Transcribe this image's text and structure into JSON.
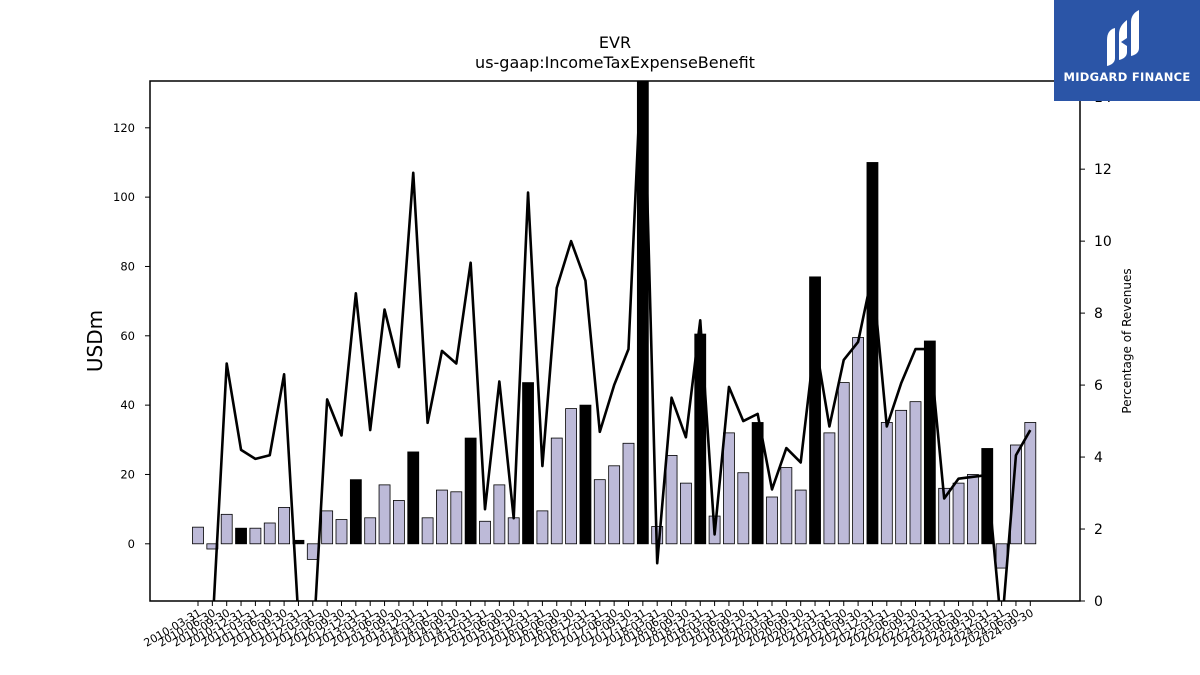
{
  "logo": {
    "text": "MIDGARD FINANCE",
    "color": "#2b55a7"
  },
  "chart_data": {
    "type": "bar",
    "title": "EVR",
    "subtitle": "us-gaap:IncomeTaxExpenseBenefit",
    "ylabel": "USDm",
    "y2label": "Percentage of Revenues",
    "ylim": [
      -16.5,
      133.5
    ],
    "y2lim": [
      0,
      14.45
    ],
    "yticks": [
      0,
      20,
      40,
      60,
      80,
      100,
      120
    ],
    "y2ticks": [
      0,
      2,
      4,
      6,
      8,
      10,
      12,
      14
    ],
    "grid": false,
    "bar_colors": {
      "quarter": "#bdbad8",
      "annual": "#000000"
    },
    "line_color": "#000000",
    "x_tick_labels": [
      "2010-03-31",
      "2010-06-30",
      "2010-09-30",
      "2010-12-31",
      "2011-03-31",
      "2011-06-30",
      "2011-09-30",
      "2011-12-31",
      "2012-03-31",
      "2012-06-30",
      "2012-09-30",
      "2012-12-31",
      "2013-03-31",
      "2013-06-30",
      "2013-09-30",
      "2013-12-31",
      "2014-03-31",
      "2014-06-30",
      "2014-09-30",
      "2014-12-31",
      "2015-03-31",
      "2015-06-30",
      "2015-09-30",
      "2015-12-31",
      "2016-03-31",
      "2016-06-30",
      "2016-09-30",
      "2016-12-31",
      "2017-03-31",
      "2017-06-30",
      "2017-09-30",
      "2017-12-31",
      "2018-03-31",
      "2018-06-30",
      "2018-09-30",
      "2018-12-31",
      "2019-03-31",
      "2019-06-30",
      "2019-09-30",
      "2019-12-31",
      "2020-03-31",
      "2020-06-30",
      "2020-09-30",
      "2020-12-31",
      "2021-03-31",
      "2021-06-30",
      "2021-09-30",
      "2021-12-31",
      "2022-03-31",
      "2022-06-30",
      "2022-09-30",
      "2022-12-31",
      "2023-03-31",
      "2023-06-30",
      "2023-09-30",
      "2023-12-31",
      "2024-03-31",
      "2024-06-30",
      "2024-09-30"
    ],
    "series": [
      {
        "kind": "bar",
        "values": [
          4.8,
          -1.5,
          8.5,
          4.5,
          4.5,
          6.0,
          10.5,
          1.0,
          -4.5,
          9.5,
          7.0,
          18.5,
          7.5,
          17.0,
          12.5,
          26.5,
          7.5,
          15.5,
          15.0,
          30.5,
          6.5,
          17.0,
          7.5,
          46.5,
          9.5,
          30.5,
          39.0,
          40.0,
          18.5,
          22.5,
          29.0,
          135.0,
          5.0,
          25.5,
          17.5,
          60.5,
          8.0,
          32.0,
          20.5,
          35.0,
          13.5,
          22.0,
          15.5,
          77.0,
          32.0,
          46.5,
          59.5,
          110.0,
          35.0,
          38.5,
          41.0,
          58.5,
          16.0,
          17.5,
          20.0,
          27.5,
          -7.0,
          28.5,
          35.0
        ],
        "annual": [
          false,
          false,
          false,
          true,
          false,
          false,
          false,
          true,
          false,
          false,
          false,
          true,
          false,
          false,
          false,
          true,
          false,
          false,
          false,
          true,
          false,
          false,
          false,
          true,
          false,
          false,
          false,
          true,
          false,
          false,
          false,
          true,
          false,
          false,
          false,
          true,
          false,
          false,
          false,
          true,
          false,
          false,
          false,
          true,
          false,
          false,
          false,
          true,
          false,
          false,
          false,
          true,
          false,
          false,
          false,
          true,
          false,
          false,
          false
        ]
      },
      {
        "kind": "line",
        "axis": "right",
        "values": [
          0.0,
          -0.8,
          6.6,
          4.2,
          3.95,
          4.05,
          6.3,
          -0.5,
          -1.4,
          5.6,
          4.6,
          8.55,
          4.75,
          8.1,
          6.5,
          11.9,
          4.95,
          6.95,
          6.6,
          9.4,
          2.55,
          6.1,
          2.3,
          11.35,
          3.75,
          8.7,
          10.0,
          8.9,
          4.7,
          6.0,
          7.0,
          15.8,
          1.05,
          5.65,
          4.55,
          7.8,
          1.85,
          5.95,
          5.0,
          5.2,
          3.1,
          4.25,
          3.85,
          7.25,
          4.85,
          6.7,
          7.2,
          9.1,
          4.85,
          6.05,
          7.0,
          7.0,
          2.85,
          3.4,
          3.45,
          3.5,
          -0.8,
          4.05,
          4.75
        ]
      }
    ]
  }
}
